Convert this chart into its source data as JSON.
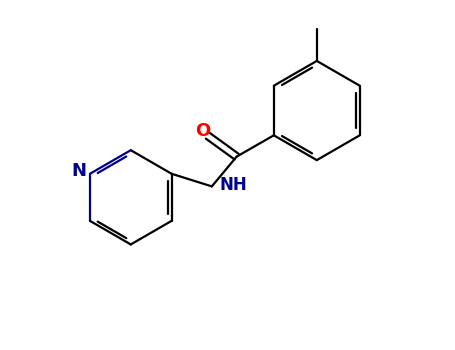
{
  "background_color": "#ffffff",
  "bond_color": "#000000",
  "N_color": "#00008b",
  "O_color": "#ff0000",
  "label_NH": "NH",
  "label_N": "N",
  "label_O": "O",
  "figsize": [
    4.55,
    3.5
  ],
  "dpi": 100,
  "bond_lw": 1.6,
  "font_size_atom": 13
}
